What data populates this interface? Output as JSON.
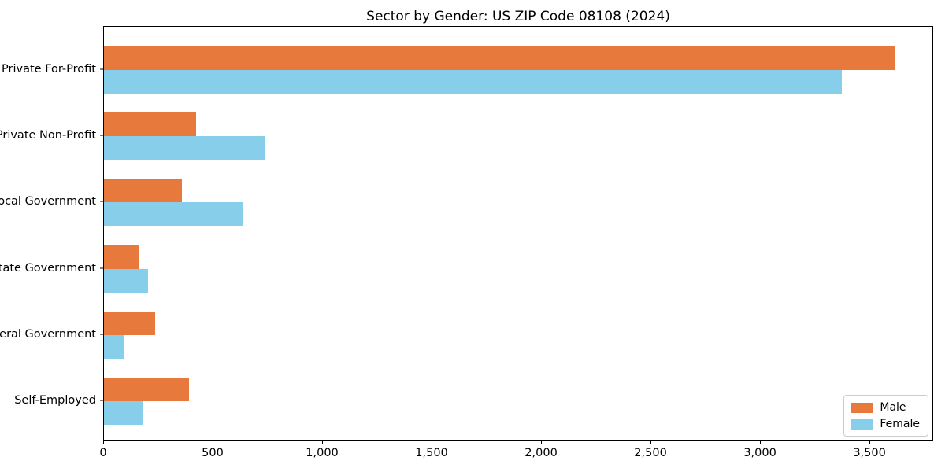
{
  "chart_data": {
    "type": "bar",
    "orientation": "horizontal",
    "title": "Sector by Gender: US ZIP Code 08108 (2024)",
    "categories": [
      "Private For-Profit",
      "Private Non-Profit",
      "Local Government",
      "State Government",
      "Federal Government",
      "Self-Employed"
    ],
    "series": [
      {
        "name": "Male",
        "color": "#e8793d",
        "values": [
          3610,
          420,
          355,
          160,
          235,
          390
        ]
      },
      {
        "name": "Female",
        "color": "#87ceeb",
        "values": [
          3370,
          735,
          635,
          200,
          90,
          180
        ]
      }
    ],
    "xlabel": "",
    "ylabel": "",
    "xlim": [
      0,
      3791
    ],
    "xticks": [
      0,
      500,
      1000,
      1500,
      2000,
      2500,
      3000,
      3500
    ],
    "xtick_labels": [
      "0",
      "500",
      "1,000",
      "1,500",
      "2,000",
      "2,500",
      "3,000",
      "3,500"
    ],
    "grid": false,
    "legend_position": "lower right",
    "legend_labels": [
      "Male",
      "Female"
    ]
  }
}
